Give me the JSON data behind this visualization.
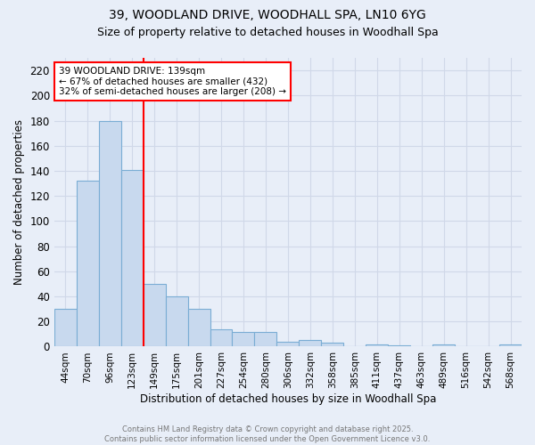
{
  "title1": "39, WOODLAND DRIVE, WOODHALL SPA, LN10 6YG",
  "title2": "Size of property relative to detached houses in Woodhall Spa",
  "xlabel": "Distribution of detached houses by size in Woodhall Spa",
  "ylabel": "Number of detached properties",
  "bar_color": "#c8d9ee",
  "bar_edge_color": "#7aadd4",
  "bg_color": "#e8eef8",
  "grid_color": "#d0d8e8",
  "categories": [
    "44sqm",
    "70sqm",
    "96sqm",
    "123sqm",
    "149sqm",
    "175sqm",
    "201sqm",
    "227sqm",
    "254sqm",
    "280sqm",
    "306sqm",
    "332sqm",
    "358sqm",
    "385sqm",
    "411sqm",
    "437sqm",
    "463sqm",
    "489sqm",
    "516sqm",
    "542sqm",
    "568sqm"
  ],
  "values": [
    30,
    132,
    180,
    141,
    50,
    40,
    30,
    14,
    12,
    12,
    4,
    5,
    3,
    0,
    2,
    1,
    0,
    2,
    0,
    0,
    2
  ],
  "red_line_x": 3.5,
  "annotation_text": "39 WOODLAND DRIVE: 139sqm\n← 67% of detached houses are smaller (432)\n32% of semi-detached houses are larger (208) →",
  "ylim": [
    0,
    230
  ],
  "yticks": [
    0,
    20,
    40,
    60,
    80,
    100,
    120,
    140,
    160,
    180,
    200,
    220
  ],
  "footer1": "Contains HM Land Registry data © Crown copyright and database right 2025.",
  "footer2": "Contains public sector information licensed under the Open Government Licence v3.0."
}
